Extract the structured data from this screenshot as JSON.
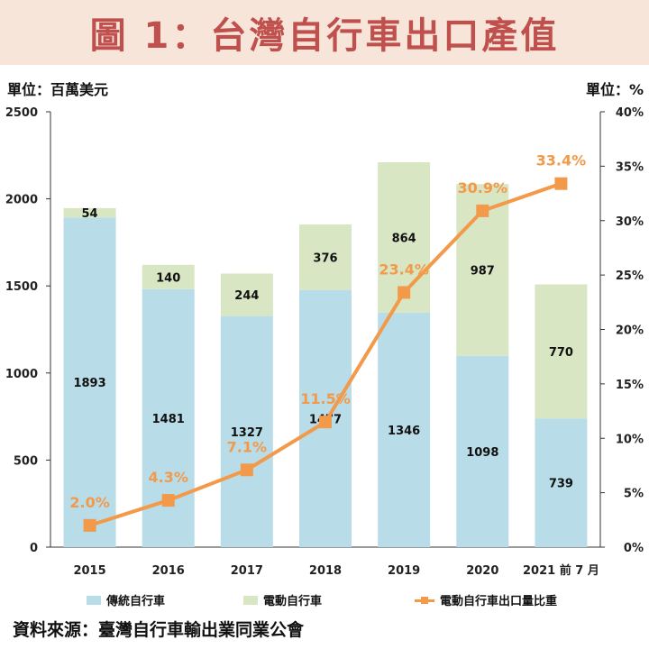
{
  "title": "圖 1：台灣自行車出口產值",
  "unit_left": "單位：百萬美元",
  "unit_right": "單位：%",
  "source": "資料來源：臺灣自行車輸出業同業公會",
  "colors": {
    "traditional": "#b8dce8",
    "electric": "#d8e6c4",
    "line": "#f29a4a",
    "title": "#c0504d",
    "title_band": "#f7e5d9"
  },
  "chart_data": {
    "type": "bar",
    "stacked": true,
    "categories": [
      "2015",
      "2016",
      "2017",
      "2018",
      "2019",
      "2020",
      "2021 前 7 月"
    ],
    "series": [
      {
        "name": "傳統自行車",
        "values": [
          1893,
          1481,
          1327,
          1477,
          1346,
          1098,
          739
        ]
      },
      {
        "name": "電動自行車",
        "values": [
          54,
          140,
          244,
          376,
          864,
          987,
          770
        ]
      }
    ],
    "line_series": {
      "name": "電動自行車出口量比重",
      "values": [
        2.0,
        4.3,
        7.1,
        11.5,
        23.4,
        30.9,
        33.4
      ],
      "labels": [
        "2.0%",
        "4.3%",
        "7.1%",
        "11.5%",
        "23.4%",
        "30.9%",
        "33.4%"
      ],
      "axis": "right"
    },
    "ylim": [
      0,
      2500
    ],
    "yticks": [
      "0",
      "500",
      "1000",
      "1500",
      "2000",
      "2500"
    ],
    "y2lim": [
      0,
      40
    ],
    "y2ticks": [
      "0%",
      "5%",
      "10%",
      "15%",
      "20%",
      "25%",
      "30%",
      "35%",
      "40%"
    ],
    "legend_position": "bottom",
    "grid": false
  }
}
